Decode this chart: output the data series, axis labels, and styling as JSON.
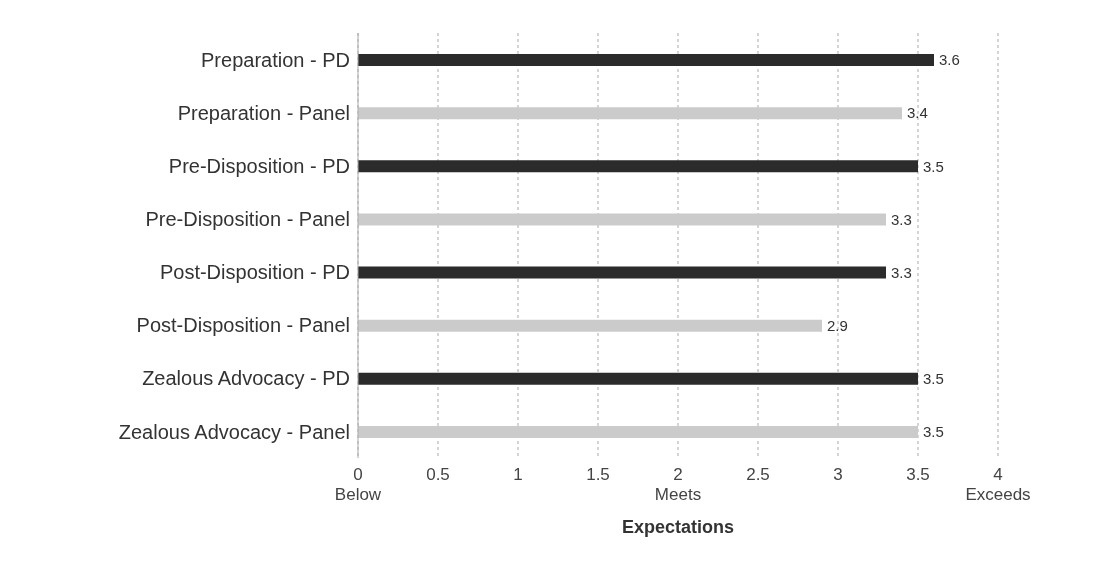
{
  "chart_data": {
    "type": "bar",
    "orientation": "horizontal",
    "categories": [
      "Preparation - PD",
      "Preparation - Panel",
      "Pre-Disposition - PD",
      "Pre-Disposition - Panel",
      "Post-Disposition - PD",
      "Post-Disposition - Panel",
      "Zealous Advocacy - PD",
      "Zealous Advocacy - Panel"
    ],
    "values": [
      3.6,
      3.4,
      3.5,
      3.3,
      3.3,
      2.9,
      3.5,
      3.5
    ],
    "colors": [
      "#2b2b2b",
      "#cbcbcb",
      "#2b2b2b",
      "#cbcbcb",
      "#2b2b2b",
      "#cbcbcb",
      "#2b2b2b",
      "#cbcbcb"
    ],
    "xlabel": "Expectations",
    "xlim": [
      0,
      4
    ],
    "xticks": [
      {
        "value": 0,
        "label": "0\nBelow"
      },
      0.5,
      1,
      1.5,
      {
        "value": 2,
        "label": "2\nMeets"
      },
      2.5,
      3,
      3.5,
      {
        "value": 4,
        "label": "4\nExceeds"
      }
    ],
    "grid": "x",
    "data_labels": true
  }
}
